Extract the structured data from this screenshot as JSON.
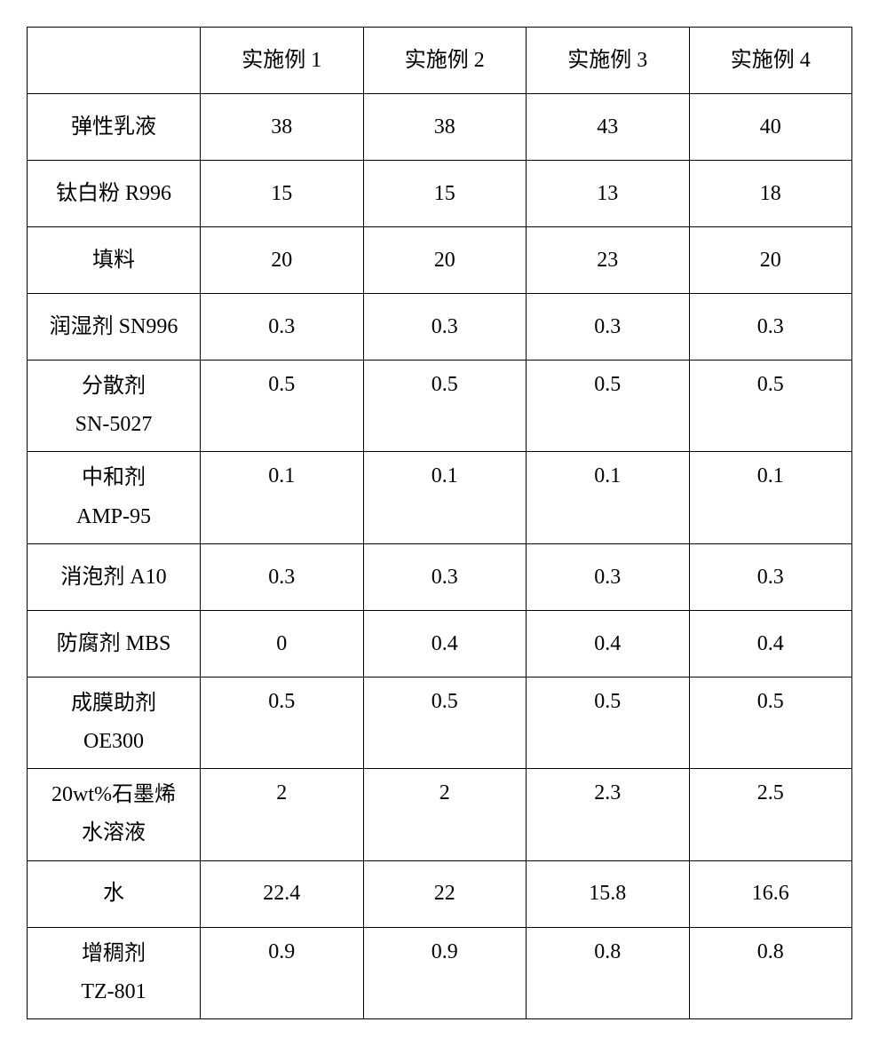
{
  "table": {
    "columns": [
      "",
      "实施例 1",
      "实施例 2",
      "实施例 3",
      "实施例 4"
    ],
    "rows": [
      {
        "label": "弹性乳液",
        "values": [
          "38",
          "38",
          "43",
          "40"
        ],
        "multiline": false
      },
      {
        "label": "钛白粉 R996",
        "values": [
          "15",
          "15",
          "13",
          "18"
        ],
        "multiline": false
      },
      {
        "label": "填料",
        "values": [
          "20",
          "20",
          "23",
          "20"
        ],
        "multiline": false
      },
      {
        "label": "润湿剂 SN996",
        "values": [
          "0.3",
          "0.3",
          "0.3",
          "0.3"
        ],
        "multiline": false
      },
      {
        "label": "分散剂\nSN-5027",
        "values": [
          "0.5",
          "0.5",
          "0.5",
          "0.5"
        ],
        "multiline": true
      },
      {
        "label": "中和剂\nAMP-95",
        "values": [
          "0.1",
          "0.1",
          "0.1",
          "0.1"
        ],
        "multiline": true
      },
      {
        "label": "消泡剂 A10",
        "values": [
          "0.3",
          "0.3",
          "0.3",
          "0.3"
        ],
        "multiline": false
      },
      {
        "label": "防腐剂 MBS",
        "values": [
          "0",
          "0.4",
          "0.4",
          "0.4"
        ],
        "multiline": false
      },
      {
        "label": "成膜助剂\nOE300",
        "values": [
          "0.5",
          "0.5",
          "0.5",
          "0.5"
        ],
        "multiline": true
      },
      {
        "label": "20wt%石墨烯\n水溶液",
        "values": [
          "2",
          "2",
          "2.3",
          "2.5"
        ],
        "multiline": true
      },
      {
        "label": "水",
        "values": [
          "22.4",
          "22",
          "15.8",
          "16.6"
        ],
        "multiline": false
      },
      {
        "label": "增稠剂\nTZ-801",
        "values": [
          "0.9",
          "0.9",
          "0.8",
          "0.8"
        ],
        "multiline": true
      }
    ],
    "border_color": "#000000",
    "background_color": "#ffffff",
    "text_color": "#000000",
    "font_size": 24
  }
}
